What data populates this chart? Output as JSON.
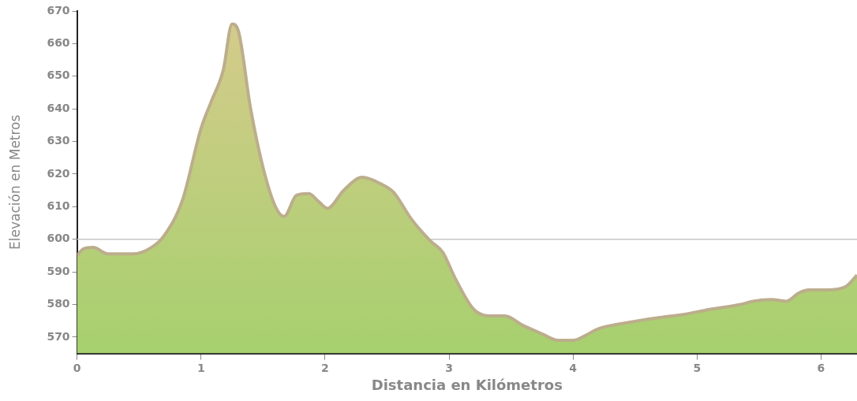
{
  "chart_data": {
    "type": "area",
    "xlabel": "Distancia en Kilómetros",
    "ylabel": "Elevación en Metros",
    "x": [
      0,
      0.05,
      0.13,
      0.25,
      0.45,
      0.6,
      0.7,
      0.85,
      1.0,
      1.08,
      1.18,
      1.25,
      1.3,
      1.4,
      1.5,
      1.6,
      1.67,
      1.77,
      1.87,
      1.95,
      2.02,
      2.15,
      2.3,
      2.45,
      2.55,
      2.7,
      2.85,
      2.95,
      3.05,
      3.2,
      3.35,
      3.45,
      3.6,
      3.75,
      3.88,
      4.0,
      4.1,
      4.2,
      4.45,
      4.7,
      4.9,
      5.1,
      5.35,
      5.45,
      5.6,
      5.72,
      5.82,
      5.9,
      6.05,
      6.2,
      6.29
    ],
    "series": [
      {
        "color": "#a6d06e",
        "values": [
          595,
          597,
          597.5,
          595.5,
          595.5,
          597.5,
          601,
          612,
          634,
          642,
          652,
          666,
          664,
          640,
          622,
          610,
          607,
          613.5,
          614,
          611.5,
          609.5,
          615,
          619,
          617,
          614.5,
          606,
          599.5,
          596,
          588,
          578.5,
          576.5,
          576.5,
          573.5,
          571,
          569,
          569,
          570.5,
          572.5,
          574.5,
          576,
          577,
          578.5,
          580,
          581,
          581.5,
          581,
          583.5,
          584.5,
          584.5,
          585.5,
          589
        ]
      }
    ],
    "xlim": [
      0,
      6.29
    ],
    "xticks": [
      0,
      1,
      2,
      3,
      4,
      5,
      6
    ],
    "ylim": [
      565,
      670
    ],
    "yticks": [
      570,
      580,
      590,
      600,
      610,
      620,
      630,
      640,
      650,
      660,
      670
    ],
    "ref_lines": [
      {
        "axis": "y",
        "value": 600,
        "color": "#c8c8c8"
      }
    ],
    "grid": false,
    "legend": false
  }
}
